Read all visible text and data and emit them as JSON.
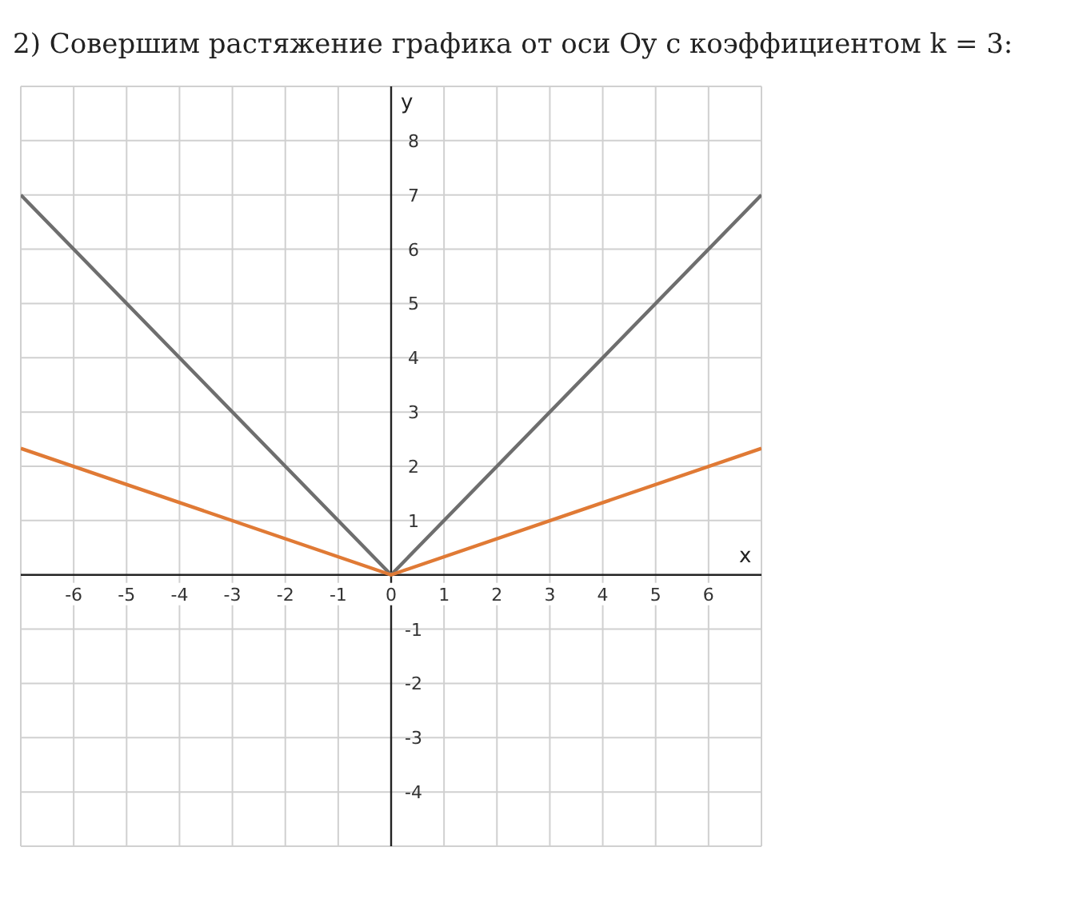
{
  "chart_data": {
    "type": "line",
    "title": "2) Совершим растяжение графика от оси Oy с коэффициентом k = 3:",
    "xlabel": "x",
    "ylabel": "y",
    "x": [
      -7,
      0,
      7
    ],
    "series": [
      {
        "color": "#6e6e6e",
        "values": [
          7,
          0,
          7
        ]
      },
      {
        "color": "#e07a35",
        "values": [
          2.33,
          0,
          2.33
        ]
      }
    ],
    "xlim": [
      -7,
      7
    ],
    "ylim": [
      -5,
      9
    ],
    "xticks": [
      -6,
      -5,
      -4,
      -3,
      -2,
      -1,
      0,
      1,
      2,
      3,
      4,
      5,
      6
    ],
    "yticks": [
      -4,
      -3,
      -2,
      -1,
      1,
      2,
      3,
      4,
      5,
      6,
      7,
      8
    ],
    "grid": true,
    "marker": "none",
    "line_style": "solid"
  }
}
